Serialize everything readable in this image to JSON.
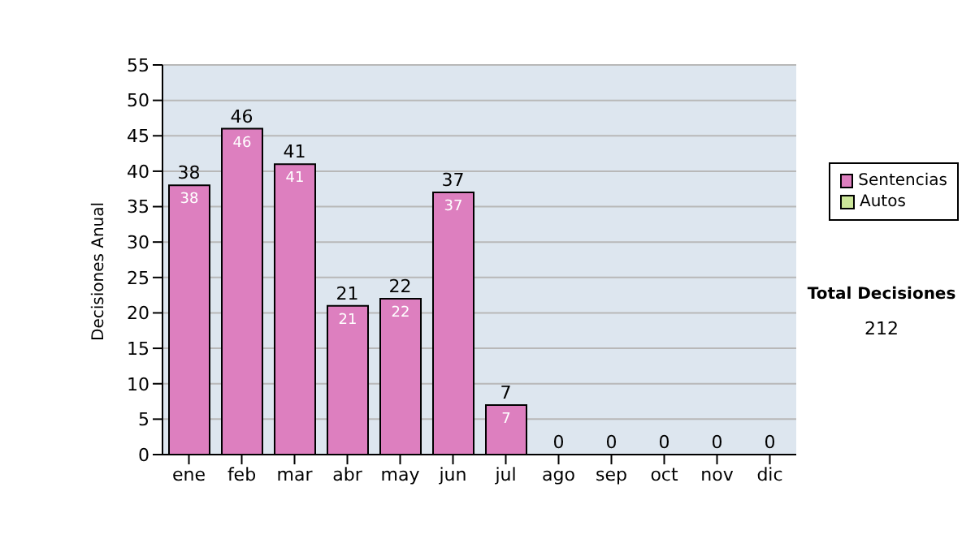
{
  "chart_data": {
    "type": "bar",
    "ylabel": "Decisiones Anual",
    "categories": [
      "ene",
      "feb",
      "mar",
      "abr",
      "may",
      "jun",
      "jul",
      "ago",
      "sep",
      "oct",
      "nov",
      "dic"
    ],
    "stacked": true,
    "series": [
      {
        "name": "Sentencias",
        "color": "#dd7fbf",
        "values": [
          38,
          46,
          41,
          21,
          22,
          37,
          7,
          0,
          0,
          0,
          0,
          0
        ],
        "value_labels": [
          "38",
          "46",
          "41",
          "21",
          "22",
          "37",
          "7",
          null,
          null,
          null,
          null,
          null
        ]
      },
      {
        "name": "Autos",
        "color": "#cce69a",
        "values": [
          0,
          0,
          0,
          0,
          0,
          0,
          0,
          0,
          0,
          0,
          0,
          0
        ]
      }
    ],
    "totals": [
      "38",
      "46",
      "41",
      "21",
      "22",
      "37",
      "7",
      "0",
      "0",
      "0",
      "0",
      "0"
    ],
    "ylim": [
      0,
      55
    ],
    "yticks": [
      0,
      5,
      10,
      15,
      20,
      25,
      30,
      35,
      40,
      45,
      50,
      55
    ],
    "grid": "y",
    "legend": "right",
    "annotations": [
      "Total Decisiones",
      "212"
    ]
  }
}
